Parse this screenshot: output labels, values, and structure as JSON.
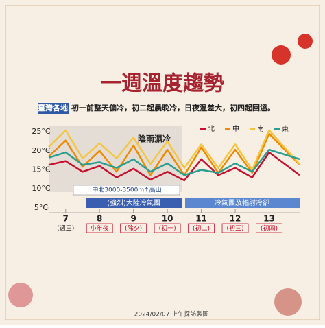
{
  "header": {
    "title": "一週溫度趨勢",
    "region": "臺灣各地",
    "subtitle": "初一前整天偏冷，初二起晨晚冷，日夜溫差大，初四起回溫。"
  },
  "chart_data": {
    "type": "line",
    "x": [
      6.5,
      7,
      7.5,
      8,
      8.5,
      9,
      9.5,
      10,
      10.5,
      11,
      11.5,
      12,
      12.5,
      13,
      13.9
    ],
    "series": [
      {
        "name": "北",
        "color": "#c8102e",
        "values": [
          16.3,
          17.3,
          14.5,
          16,
          13,
          15.3,
          12.4,
          14.5,
          12.2,
          17.8,
          13.6,
          15.5,
          13,
          19.6,
          13.6
        ]
      },
      {
        "name": "中",
        "color": "#f08a00",
        "values": [
          18.5,
          22.7,
          15.8,
          20,
          14.5,
          21.4,
          13.6,
          20.3,
          13.6,
          20.9,
          14.2,
          20.3,
          14.2,
          24.5,
          16.3
        ]
      },
      {
        "name": "南",
        "color": "#f5c542",
        "values": [
          21,
          25.4,
          18,
          22,
          18,
          23.5,
          16.5,
          22.5,
          15.5,
          21.7,
          15.5,
          21.7,
          15,
          25.4,
          16.5
        ]
      },
      {
        "name": "東",
        "color": "#2a9d8f",
        "values": [
          18.2,
          19.6,
          16.3,
          17,
          15.5,
          17.8,
          14.5,
          16.7,
          13.6,
          15,
          14.2,
          16.7,
          14.5,
          20.3,
          17.8
        ]
      }
    ],
    "xlim": [
      6.5,
      13.9
    ],
    "ylim": [
      3,
      27
    ],
    "yticks": [
      {
        "value": 5,
        "label": "5°C"
      },
      {
        "value": 10,
        "label": "10°C"
      },
      {
        "value": 15,
        "label": "15°C"
      },
      {
        "value": 20,
        "label": "20°C"
      },
      {
        "value": 25,
        "label": "25°C"
      }
    ],
    "xticks": [
      {
        "value": 7,
        "label": "7"
      },
      {
        "value": 8,
        "label": "8"
      },
      {
        "value": 9,
        "label": "9"
      },
      {
        "value": 10,
        "label": "10"
      },
      {
        "value": 11,
        "label": "11"
      },
      {
        "value": 12,
        "label": "12"
      },
      {
        "value": 13,
        "label": "13"
      }
    ],
    "xtick_notes": [
      "(週三)",
      "小年夜",
      "(除夕)",
      "(初一)",
      "(初二)",
      "(初三)",
      "(初四)"
    ],
    "annotations": [
      "陰雨濕冷",
      "中北3000-3500m↑高山",
      "(強烈)大陸冷氣團",
      "冷氣團及輻射冷卻"
    ]
  },
  "footer": "2024/02/07 上午採訪製圖"
}
